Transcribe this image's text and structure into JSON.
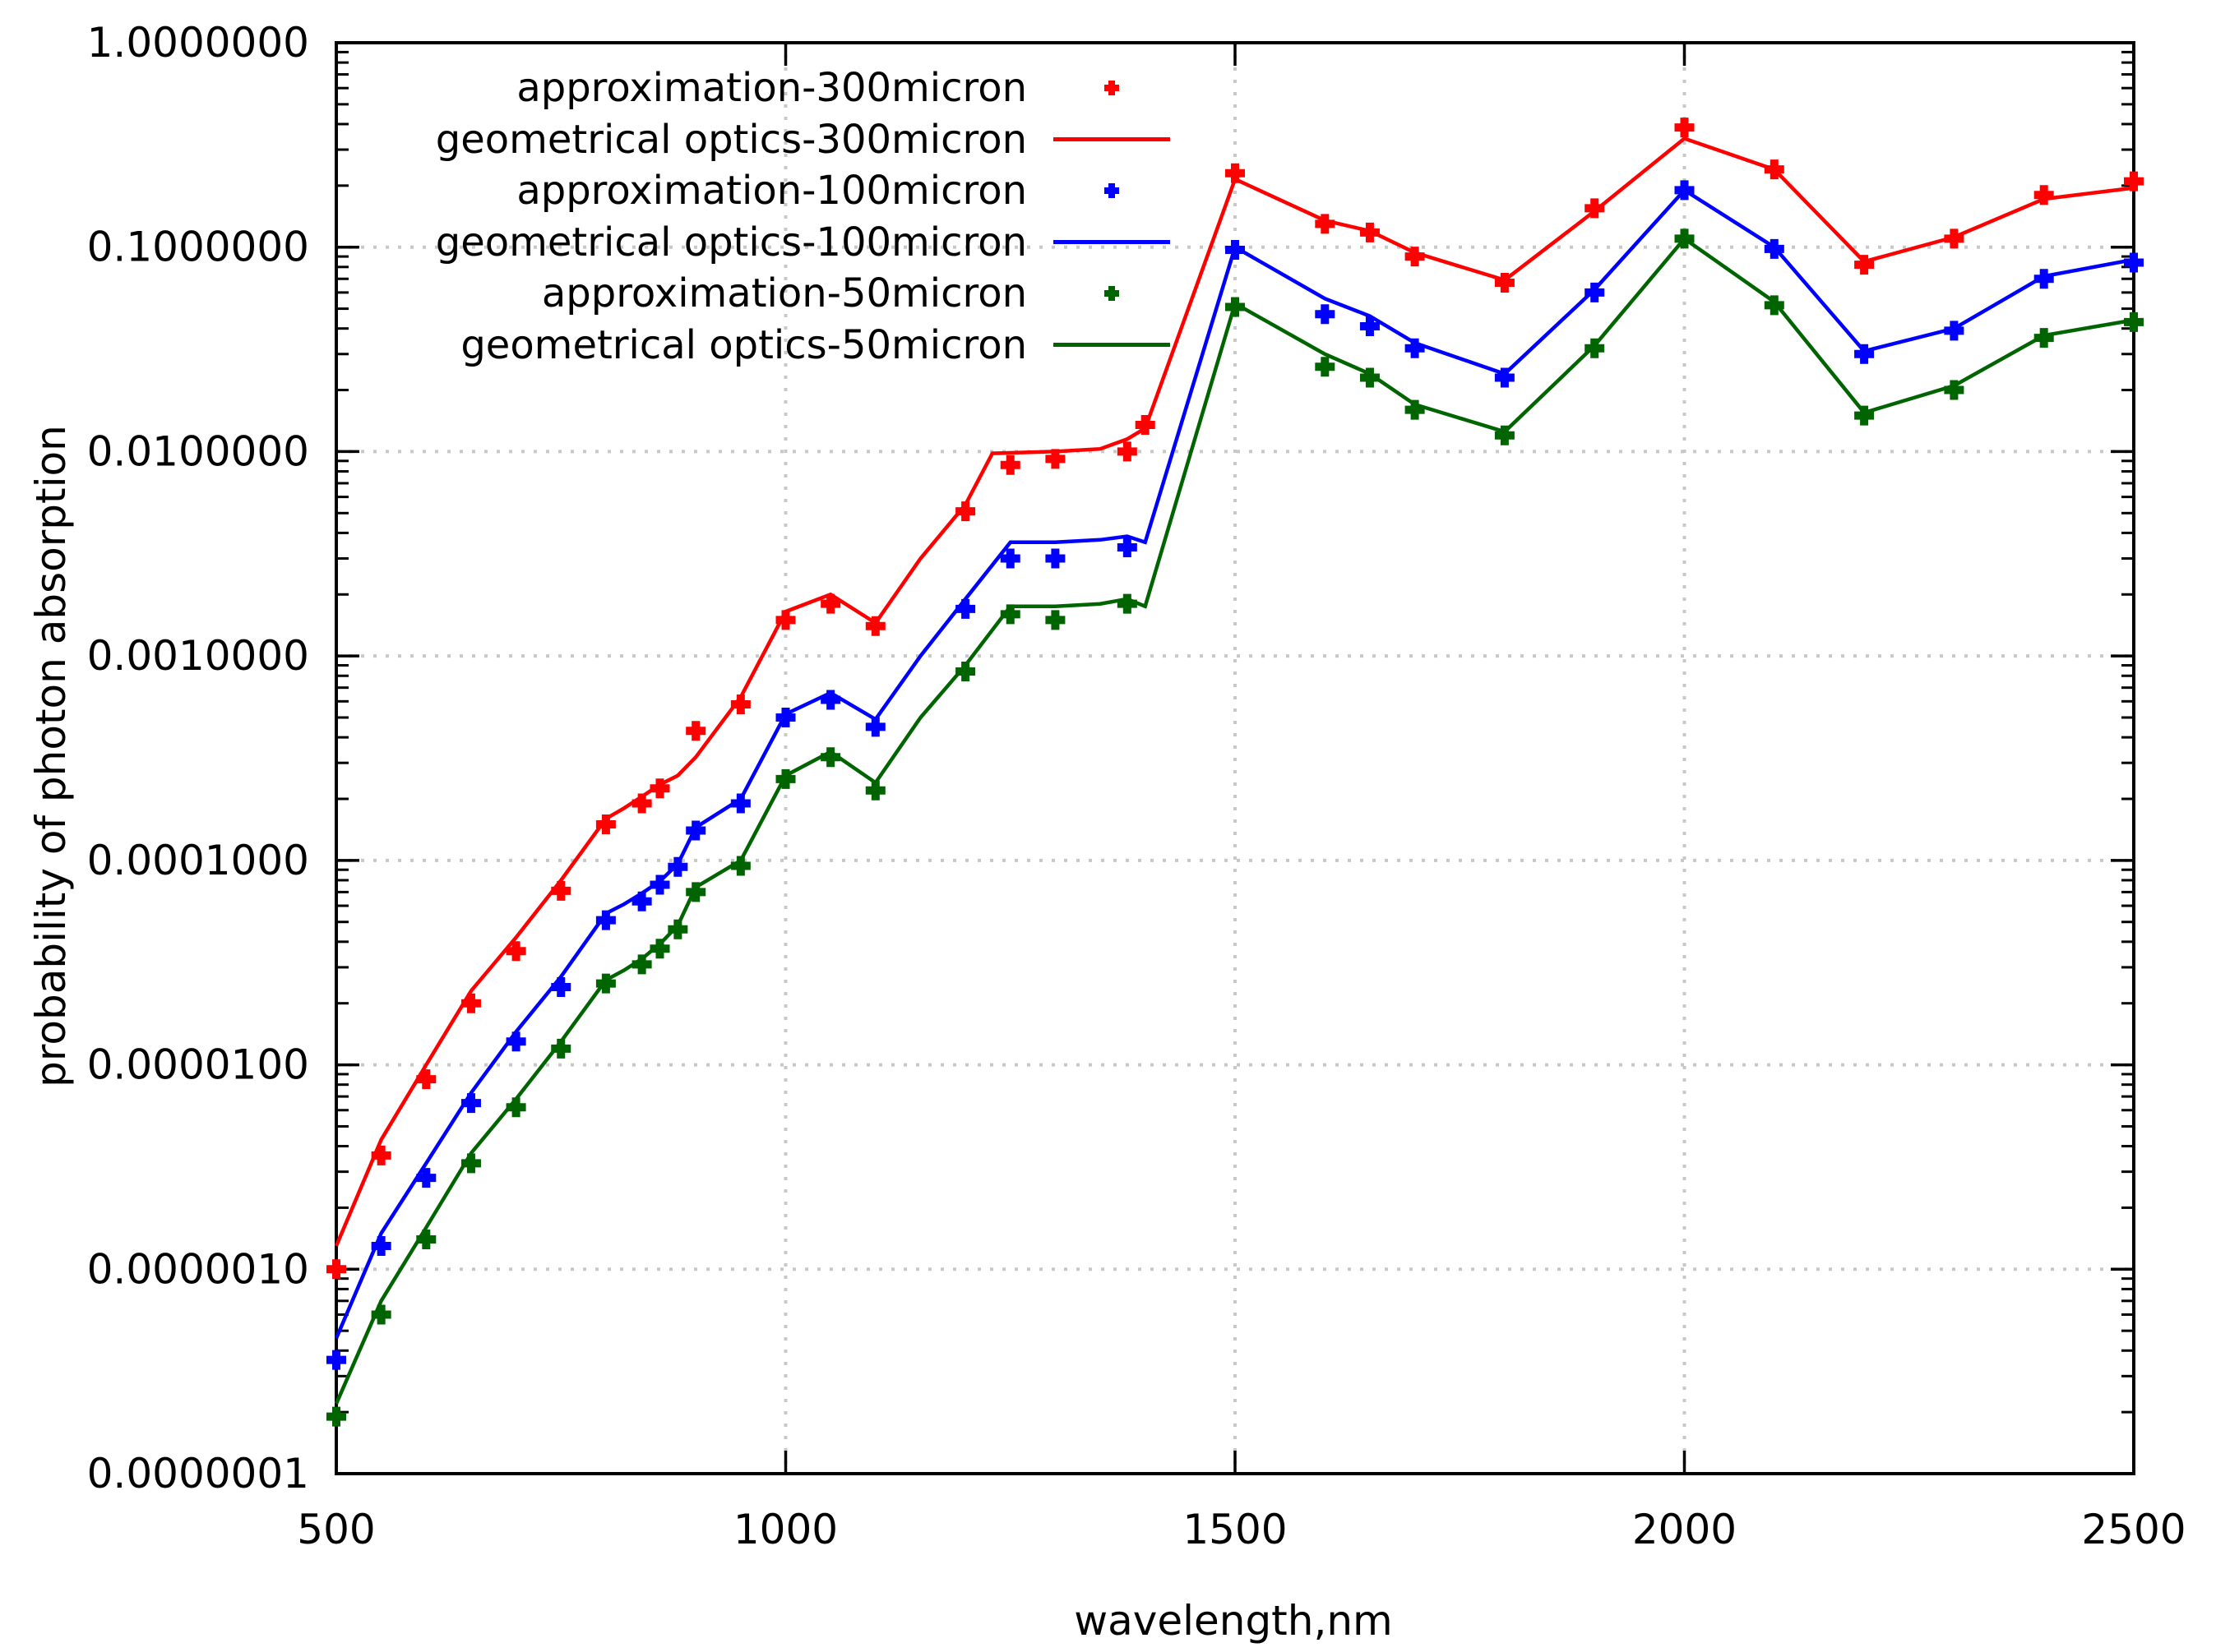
{
  "axes": {
    "x": {
      "label": "wavelength,nm",
      "min": 500,
      "max": 2500,
      "ticks": [
        "500",
        "1000",
        "1500",
        "2000",
        "2500"
      ],
      "gridlines": [
        1000,
        1500,
        2000
      ]
    },
    "y": {
      "label": "probability of photon absorption",
      "scale": "log",
      "min": 1e-07,
      "max": 1,
      "tick_labels": [
        "1.0000000",
        "0.1000000",
        "0.0100000",
        "0.0010000",
        "0.0001000",
        "0.0000100",
        "0.0000010",
        "0.0000001"
      ]
    }
  },
  "colors": {
    "red": "#ff0000",
    "blue": "#0000ff",
    "green": "#006400",
    "grid": "#c8c8c8",
    "frame": "#000000"
  },
  "legend": {
    "items": [
      {
        "label": "approximation-300micron",
        "marker": "point",
        "color": "#ff0000"
      },
      {
        "label": "geometrical optics-300micron",
        "marker": "line",
        "color": "#ff0000"
      },
      {
        "label": "approximation-100micron",
        "marker": "point",
        "color": "#0000ff"
      },
      {
        "label": "geometrical optics-100micron",
        "marker": "line",
        "color": "#0000ff"
      },
      {
        "label": "approximation-50micron",
        "marker": "point",
        "color": "#006400"
      },
      {
        "label": "geometrical optics-50micron",
        "marker": "line",
        "color": "#006400"
      }
    ]
  },
  "chart_data": {
    "type": "line",
    "xlabel": "wavelength,nm",
    "ylabel": "probability of photon absorption",
    "x_range": [
      500,
      2500
    ],
    "y_range_log": [
      1e-07,
      1
    ],
    "grid": true,
    "legend_position": "top-left-inside",
    "series": [
      {
        "name": "approximation-300micron",
        "style": "points",
        "color": "#ff0000",
        "x": [
          500,
          550,
          600,
          650,
          700,
          750,
          800,
          840,
          860,
          900,
          950,
          1000,
          1050,
          1100,
          1200,
          1250,
          1300,
          1380,
          1400,
          1500,
          1600,
          1650,
          1700,
          1800,
          1900,
          2000,
          2100,
          2200,
          2300,
          2400,
          2500
        ],
        "y": [
          1e-06,
          3.6e-06,
          8.5e-06,
          2e-05,
          3.6e-05,
          7.1e-05,
          0.00015,
          0.00019,
          0.000225,
          0.00043,
          0.00058,
          0.0015,
          0.0018,
          0.0014,
          0.0051,
          0.0086,
          0.0092,
          0.01,
          0.0135,
          0.23,
          0.13,
          0.118,
          0.09,
          0.067,
          0.155,
          0.385,
          0.24,
          0.082,
          0.11,
          0.18,
          0.21
        ]
      },
      {
        "name": "geometrical optics-300micron",
        "style": "line",
        "color": "#ff0000",
        "x": [
          500,
          550,
          600,
          650,
          700,
          750,
          800,
          820,
          840,
          860,
          880,
          900,
          950,
          1000,
          1050,
          1100,
          1150,
          1200,
          1230,
          1300,
          1350,
          1380,
          1400,
          1500,
          1600,
          1650,
          1700,
          1800,
          1900,
          2000,
          2100,
          2200,
          2300,
          2400,
          2500
        ],
        "y": [
          1.3e-06,
          4.3e-06,
          1e-05,
          2.3e-05,
          4.2e-05,
          8e-05,
          0.00016,
          0.00018,
          0.000205,
          0.000235,
          0.00026,
          0.00032,
          0.00063,
          0.00165,
          0.002,
          0.00145,
          0.003,
          0.0055,
          0.0098,
          0.01,
          0.0103,
          0.0115,
          0.013,
          0.215,
          0.135,
          0.12,
          0.094,
          0.069,
          0.15,
          0.34,
          0.24,
          0.085,
          0.112,
          0.172,
          0.195
        ]
      },
      {
        "name": "approximation-100micron",
        "style": "points",
        "color": "#0000ff",
        "x": [
          500,
          550,
          600,
          650,
          700,
          750,
          800,
          840,
          860,
          880,
          900,
          950,
          1000,
          1050,
          1100,
          1200,
          1250,
          1300,
          1380,
          1500,
          1600,
          1650,
          1700,
          1800,
          1900,
          2000,
          2100,
          2200,
          2300,
          2400,
          2500
        ],
        "y": [
          3.6e-07,
          1.3e-06,
          2.8e-06,
          6.5e-06,
          1.3e-05,
          2.4e-05,
          5.1e-05,
          6.3e-05,
          7.6e-05,
          9.3e-05,
          0.00014,
          0.00019,
          0.0005,
          0.00061,
          0.00045,
          0.0017,
          0.003,
          0.003,
          0.0034,
          0.097,
          0.047,
          0.041,
          0.032,
          0.023,
          0.06,
          0.19,
          0.098,
          0.03,
          0.039,
          0.07,
          0.084
        ]
      },
      {
        "name": "geometrical optics-100micron",
        "style": "line",
        "color": "#0000ff",
        "x": [
          500,
          550,
          600,
          650,
          700,
          750,
          800,
          820,
          840,
          860,
          880,
          900,
          950,
          1000,
          1050,
          1100,
          1150,
          1200,
          1250,
          1300,
          1350,
          1380,
          1400,
          1500,
          1600,
          1650,
          1700,
          1800,
          1900,
          2000,
          2100,
          2200,
          2300,
          2400,
          2500
        ],
        "y": [
          4.6e-07,
          1.5e-06,
          3.3e-06,
          7.3e-06,
          1.45e-05,
          2.7e-05,
          5.5e-05,
          6.1e-05,
          6.9e-05,
          7.9e-05,
          9.6e-05,
          0.000145,
          0.0002,
          0.00052,
          0.00066,
          0.00049,
          0.001,
          0.0019,
          0.0036,
          0.0036,
          0.0037,
          0.00385,
          0.0036,
          0.1,
          0.056,
          0.046,
          0.034,
          0.024,
          0.062,
          0.19,
          0.1,
          0.031,
          0.04,
          0.072,
          0.087
        ]
      },
      {
        "name": "approximation-50micron",
        "style": "points",
        "color": "#006400",
        "x": [
          500,
          550,
          600,
          650,
          700,
          750,
          800,
          840,
          860,
          880,
          900,
          950,
          1000,
          1050,
          1100,
          1200,
          1250,
          1300,
          1380,
          1500,
          1600,
          1650,
          1700,
          1800,
          1900,
          2000,
          2100,
          2200,
          2300,
          2400,
          2500
        ],
        "y": [
          1.9e-07,
          6e-07,
          1.4e-06,
          3.3e-06,
          6.2e-06,
          1.2e-05,
          2.5e-05,
          3.1e-05,
          3.7e-05,
          4.6e-05,
          7e-05,
          9.4e-05,
          0.00025,
          0.00032,
          0.00022,
          0.00084,
          0.0016,
          0.0015,
          0.0018,
          0.051,
          0.026,
          0.023,
          0.016,
          0.012,
          0.032,
          0.11,
          0.052,
          0.015,
          0.02,
          0.036,
          0.043
        ]
      },
      {
        "name": "geometrical optics-50micron",
        "style": "line",
        "color": "#006400",
        "x": [
          500,
          550,
          600,
          650,
          700,
          750,
          800,
          820,
          840,
          860,
          880,
          900,
          950,
          1000,
          1050,
          1100,
          1150,
          1200,
          1250,
          1300,
          1350,
          1380,
          1400,
          1500,
          1600,
          1650,
          1700,
          1800,
          1900,
          2000,
          2100,
          2200,
          2300,
          2400,
          2500
        ],
        "y": [
          2.2e-07,
          7e-07,
          1.6e-06,
          3.7e-06,
          6.8e-06,
          1.3e-05,
          2.6e-05,
          2.9e-05,
          3.3e-05,
          3.9e-05,
          4.8e-05,
          7.4e-05,
          0.0001,
          0.00026,
          0.00034,
          0.00024,
          0.0005,
          0.0009,
          0.00175,
          0.00175,
          0.0018,
          0.0019,
          0.00175,
          0.053,
          0.03,
          0.024,
          0.017,
          0.0125,
          0.033,
          0.11,
          0.054,
          0.0155,
          0.021,
          0.037,
          0.044
        ]
      }
    ]
  }
}
